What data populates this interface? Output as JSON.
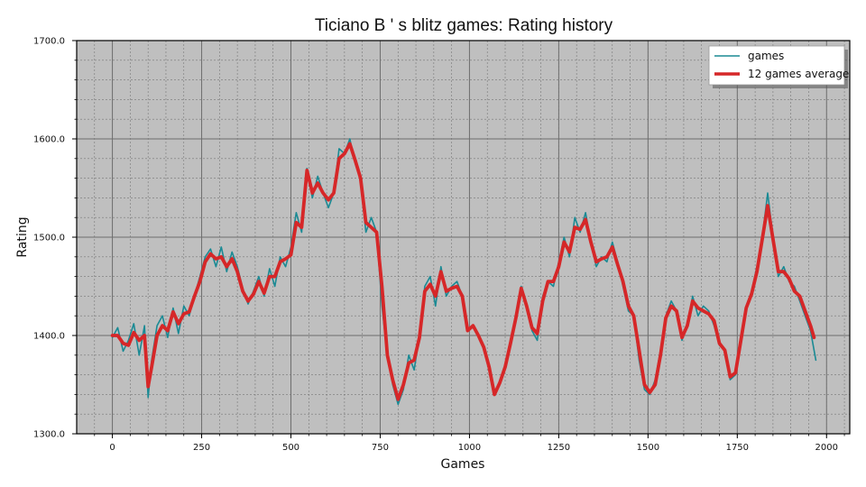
{
  "chart_data": {
    "type": "line",
    "title": "Ticiano B ' s blitz games: Rating history",
    "xlabel": "Games",
    "ylabel": "Rating",
    "xlim": [
      -100,
      2065
    ],
    "ylim": [
      1300,
      1700
    ],
    "x_ticks": [
      0,
      250,
      500,
      750,
      1000,
      1250,
      1500,
      1750,
      2000
    ],
    "x_tick_labels": [
      "0",
      "250",
      "500",
      "750",
      "1000",
      "1250",
      "1500",
      "1750",
      "2000"
    ],
    "y_ticks": [
      1300,
      1400,
      1500,
      1600,
      1700
    ],
    "y_tick_labels": [
      "1300.0",
      "1400.0",
      "1500.0",
      "1600.0",
      "1700.0"
    ],
    "grid": true,
    "legend_position": "top-right",
    "colors": {
      "games": "#1a8a94",
      "average": "#d62728",
      "background": "#bfbfbf"
    },
    "series": [
      {
        "name": "games",
        "x": [
          0,
          15,
          30,
          45,
          60,
          75,
          90,
          100,
          110,
          125,
          140,
          155,
          170,
          185,
          200,
          215,
          230,
          245,
          260,
          275,
          290,
          305,
          320,
          335,
          350,
          365,
          380,
          395,
          410,
          425,
          440,
          455,
          470,
          485,
          500,
          515,
          530,
          545,
          560,
          575,
          590,
          605,
          620,
          635,
          650,
          665,
          680,
          695,
          710,
          725,
          740,
          755,
          770,
          785,
          800,
          815,
          830,
          845,
          860,
          875,
          890,
          905,
          920,
          935,
          950,
          965,
          980,
          995,
          1010,
          1025,
          1040,
          1055,
          1070,
          1085,
          1100,
          1115,
          1130,
          1145,
          1160,
          1175,
          1190,
          1205,
          1220,
          1235,
          1250,
          1265,
          1280,
          1295,
          1310,
          1325,
          1340,
          1355,
          1370,
          1385,
          1400,
          1415,
          1430,
          1445,
          1460,
          1475,
          1490,
          1505,
          1520,
          1535,
          1550,
          1565,
          1580,
          1595,
          1610,
          1625,
          1640,
          1655,
          1670,
          1685,
          1700,
          1715,
          1730,
          1745,
          1760,
          1775,
          1790,
          1805,
          1820,
          1835,
          1850,
          1865,
          1880,
          1895,
          1910,
          1925,
          1940,
          1955,
          1970
        ],
        "y": [
          1398,
          1408,
          1384,
          1395,
          1412,
          1380,
          1410,
          1337,
          1375,
          1410,
          1420,
          1398,
          1428,
          1402,
          1430,
          1420,
          1440,
          1460,
          1480,
          1488,
          1470,
          1490,
          1465,
          1485,
          1470,
          1448,
          1432,
          1445,
          1460,
          1440,
          1468,
          1450,
          1480,
          1470,
          1490,
          1525,
          1505,
          1570,
          1540,
          1562,
          1545,
          1530,
          1545,
          1590,
          1585,
          1600,
          1575,
          1560,
          1505,
          1520,
          1505,
          1430,
          1380,
          1350,
          1330,
          1345,
          1380,
          1365,
          1400,
          1450,
          1460,
          1430,
          1470,
          1440,
          1450,
          1455,
          1440,
          1405,
          1410,
          1400,
          1390,
          1370,
          1340,
          1350,
          1370,
          1390,
          1420,
          1450,
          1430,
          1405,
          1395,
          1440,
          1455,
          1450,
          1475,
          1500,
          1480,
          1520,
          1505,
          1525,
          1495,
          1470,
          1480,
          1475,
          1495,
          1475,
          1450,
          1425,
          1420,
          1375,
          1345,
          1340,
          1355,
          1385,
          1420,
          1435,
          1425,
          1395,
          1410,
          1440,
          1420,
          1430,
          1425,
          1410,
          1390,
          1385,
          1355,
          1360,
          1395,
          1430,
          1445,
          1470,
          1500,
          1545,
          1500,
          1460,
          1470,
          1455,
          1450,
          1435,
          1420,
          1405,
          1375
        ]
      },
      {
        "name": "12 games average",
        "x": [
          0,
          15,
          30,
          45,
          60,
          75,
          90,
          100,
          110,
          125,
          140,
          155,
          170,
          185,
          200,
          215,
          230,
          245,
          260,
          275,
          290,
          305,
          320,
          335,
          350,
          365,
          380,
          395,
          410,
          425,
          440,
          455,
          470,
          485,
          500,
          515,
          530,
          545,
          560,
          575,
          590,
          605,
          620,
          635,
          650,
          665,
          680,
          695,
          710,
          725,
          740,
          755,
          770,
          785,
          800,
          815,
          830,
          845,
          860,
          875,
          890,
          905,
          920,
          935,
          950,
          965,
          980,
          995,
          1010,
          1025,
          1040,
          1055,
          1070,
          1085,
          1100,
          1115,
          1130,
          1145,
          1160,
          1175,
          1190,
          1205,
          1220,
          1235,
          1250,
          1265,
          1280,
          1295,
          1310,
          1325,
          1340,
          1355,
          1370,
          1385,
          1400,
          1415,
          1430,
          1445,
          1460,
          1475,
          1490,
          1505,
          1520,
          1535,
          1550,
          1565,
          1580,
          1595,
          1610,
          1625,
          1640,
          1655,
          1670,
          1685,
          1700,
          1715,
          1730,
          1745,
          1760,
          1775,
          1790,
          1805,
          1820,
          1835,
          1850,
          1865,
          1880,
          1895,
          1910,
          1925,
          1940,
          1955,
          1965
        ],
        "y": [
          1400,
          1400,
          1392,
          1390,
          1403,
          1395,
          1400,
          1348,
          1368,
          1400,
          1410,
          1405,
          1424,
          1412,
          1422,
          1424,
          1440,
          1455,
          1475,
          1483,
          1478,
          1480,
          1470,
          1478,
          1465,
          1445,
          1435,
          1442,
          1455,
          1443,
          1460,
          1460,
          1475,
          1478,
          1482,
          1515,
          1510,
          1568,
          1545,
          1555,
          1545,
          1538,
          1545,
          1580,
          1585,
          1595,
          1578,
          1560,
          1515,
          1510,
          1505,
          1450,
          1380,
          1355,
          1335,
          1350,
          1372,
          1375,
          1398,
          1445,
          1452,
          1440,
          1465,
          1445,
          1448,
          1450,
          1440,
          1405,
          1410,
          1400,
          1388,
          1368,
          1340,
          1352,
          1368,
          1392,
          1418,
          1448,
          1430,
          1408,
          1402,
          1435,
          1455,
          1455,
          1470,
          1495,
          1485,
          1510,
          1508,
          1518,
          1495,
          1475,
          1478,
          1480,
          1490,
          1472,
          1455,
          1430,
          1420,
          1385,
          1350,
          1342,
          1350,
          1380,
          1418,
          1430,
          1425,
          1398,
          1410,
          1435,
          1428,
          1425,
          1422,
          1415,
          1392,
          1385,
          1358,
          1362,
          1395,
          1428,
          1442,
          1465,
          1498,
          1532,
          1498,
          1465,
          1465,
          1458,
          1445,
          1440,
          1425,
          1410,
          1398
        ]
      }
    ]
  }
}
